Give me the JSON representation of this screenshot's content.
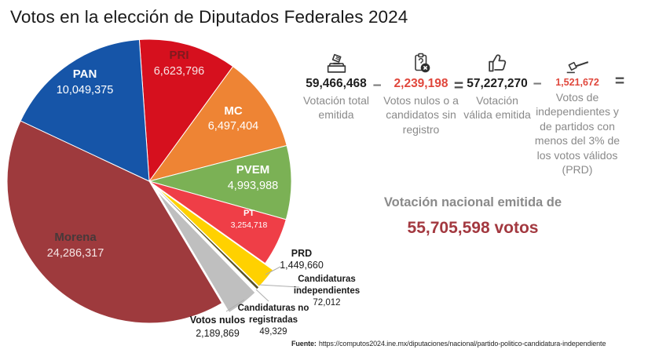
{
  "title": "Votos en la elección de Diputados Federales 2024",
  "chart_data": {
    "type": "pie",
    "title": "Votos en la elección de Diputados Federales 2024",
    "start_angle_deg": -4,
    "legend_position": "none",
    "total_votes": 59466468,
    "slices": [
      {
        "party": "PRI",
        "votes": 6623796,
        "label": "6,623,796",
        "color": "#d6101e"
      },
      {
        "party": "MC",
        "votes": 6497404,
        "label": "6,497,404",
        "color": "#ee8434"
      },
      {
        "party": "PVEM",
        "votes": 4993988,
        "label": "4,993,988",
        "color": "#7bb155"
      },
      {
        "party": "PT",
        "votes": 3254718,
        "label": "3,254,718",
        "color": "#ef3e47"
      },
      {
        "party": "PRD",
        "votes": 1449660,
        "label": "1,449,660",
        "color": "#ffd100"
      },
      {
        "party": "Candidaturas independientes",
        "votes": 72012,
        "label": "72,012",
        "color": "#5a5226"
      },
      {
        "party": "Candidaturas no registradas",
        "votes": 49329,
        "label": "49,329",
        "color": "#ffffff"
      },
      {
        "party": "Votos nulos",
        "votes": 2189869,
        "label": "2,189,869",
        "color": "#bfbfbf"
      },
      {
        "party": "Morena",
        "votes": 24286317,
        "label": "24,286,317",
        "color": "#9e3a3d"
      },
      {
        "party": "PAN",
        "votes": 10049375,
        "label": "10,049,375",
        "color": "#1655a8"
      }
    ]
  },
  "equation": {
    "minus": "−",
    "equals": "=",
    "terms": [
      {
        "icon": "ballot-box-icon",
        "value": "59,466,468",
        "label": "Votación total emitida"
      },
      {
        "icon": "null-vote-icon",
        "value": "2,239,198",
        "label": "Votos nulos o a candidatos sin registro"
      },
      {
        "icon": "thumbs-up-icon",
        "value": "57,227,270",
        "label": "Votación válida emitida"
      },
      {
        "icon": "gavel-icon",
        "value": "1,521,672",
        "label": "Votos de independientes y de partidos con menos del 3% de los votos válidos (PRD)"
      }
    ]
  },
  "result": {
    "lead": "Votación nacional emitida de",
    "total": "55,705,598 votos"
  },
  "footer": {
    "label": "Fuente:",
    "url": "https://computos2024.ine.mx/diputaciones/nacional/partido-politico-candidatura-independiente"
  },
  "colors": {
    "accent_red": "#e0473c",
    "result_red": "#a33940",
    "gray_text": "#8a8a8a",
    "dark_text": "#1f1f1f"
  }
}
